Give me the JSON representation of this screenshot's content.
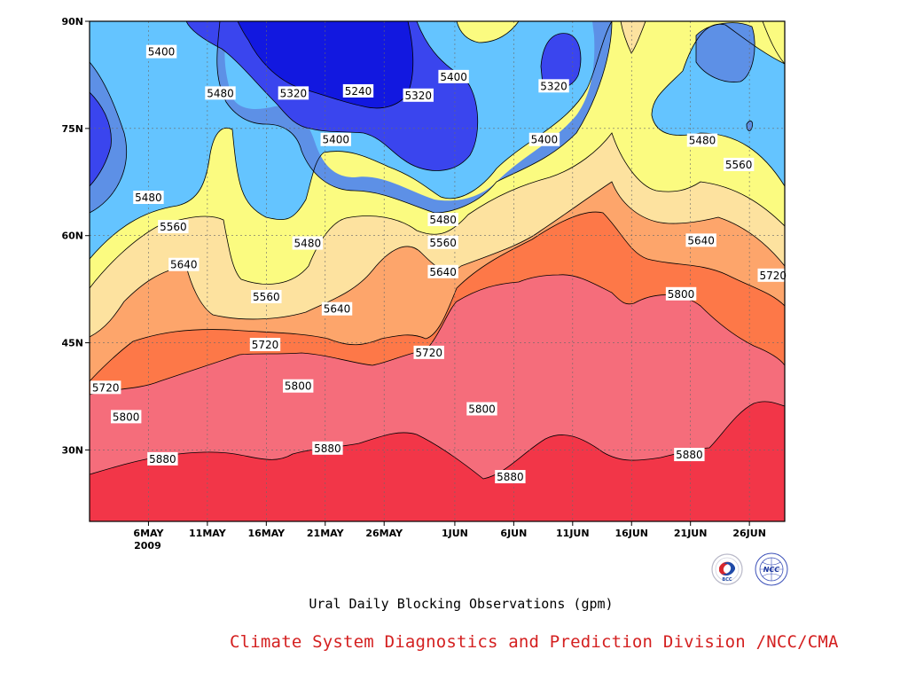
{
  "chart_data": {
    "type": "contour",
    "title": "",
    "caption": "Ural Daily Blocking Observations (gpm)",
    "credit": "Climate System Diagnostics and Prediction Division /NCC/CMA",
    "y_ticks": [
      "90N",
      "75N",
      "60N",
      "45N",
      "30N"
    ],
    "y_tick_values": [
      90,
      75,
      60,
      45,
      30
    ],
    "ylim": [
      20,
      90
    ],
    "x_ticks": [
      "6MAY",
      "11MAY",
      "16MAY",
      "21MAY",
      "26MAY",
      "1JUN",
      "6JUN",
      "11JUN",
      "16JUN",
      "21JUN",
      "26JUN"
    ],
    "x_tick_days": [
      6,
      11,
      16,
      21,
      26,
      32,
      37,
      42,
      47,
      52,
      57
    ],
    "x_year_label": "2009",
    "xlim_days": [
      1,
      60
    ],
    "x_axis_note": "days counted from 1 May 2009",
    "grid": true,
    "contour_interval": 80,
    "colors": {
      "lt5240": "#1218e0",
      "5240_5320": "#3a45ee",
      "5320_5400": "#5d90e6",
      "5400_5480": "#64c4ff",
      "5480_5560": "#fbfb80",
      "5560_5640": "#fde29f",
      "5640_5720": "#fda56b",
      "5720_5800": "#fd7848",
      "5800_5880": "#f56d7b",
      "gt5880": "#f23648"
    },
    "contour_labels": [
      {
        "text": "5400",
        "day": 7.1,
        "lat": 85.7
      },
      {
        "text": "5480",
        "day": 12.1,
        "lat": 79.9
      },
      {
        "text": "5320",
        "day": 18.3,
        "lat": 79.9
      },
      {
        "text": "5240",
        "day": 23.8,
        "lat": 80.2
      },
      {
        "text": "5320",
        "day": 28.9,
        "lat": 79.6
      },
      {
        "text": "5400",
        "day": 31.9,
        "lat": 82.2
      },
      {
        "text": "5320",
        "day": 40.4,
        "lat": 80.9
      },
      {
        "text": "5400",
        "day": 21.9,
        "lat": 73.4
      },
      {
        "text": "5400",
        "day": 39.6,
        "lat": 73.4
      },
      {
        "text": "5480",
        "day": 53.0,
        "lat": 73.3
      },
      {
        "text": "5560",
        "day": 56.1,
        "lat": 69.9
      },
      {
        "text": "5480",
        "day": 6.0,
        "lat": 65.3
      },
      {
        "text": "5560",
        "day": 8.1,
        "lat": 61.2
      },
      {
        "text": "5640",
        "day": 9.0,
        "lat": 55.9
      },
      {
        "text": "5480",
        "day": 19.5,
        "lat": 58.9
      },
      {
        "text": "5480",
        "day": 31.0,
        "lat": 62.2
      },
      {
        "text": "5560",
        "day": 31.0,
        "lat": 59.0
      },
      {
        "text": "5640",
        "day": 31.0,
        "lat": 54.9
      },
      {
        "text": "5560",
        "day": 16.0,
        "lat": 51.4
      },
      {
        "text": "5640",
        "day": 22.0,
        "lat": 49.7
      },
      {
        "text": "5640",
        "day": 52.9,
        "lat": 59.3
      },
      {
        "text": "5720",
        "day": 59.0,
        "lat": 54.4
      },
      {
        "text": "5800",
        "day": 51.2,
        "lat": 51.8
      },
      {
        "text": "5720",
        "day": 15.9,
        "lat": 44.7
      },
      {
        "text": "5720",
        "day": 29.8,
        "lat": 43.6
      },
      {
        "text": "5720",
        "day": 1.3,
        "lat": 38.7
      },
      {
        "text": "5800",
        "day": 18.7,
        "lat": 38.9
      },
      {
        "text": "5800",
        "day": 4.1,
        "lat": 34.6
      },
      {
        "text": "5800",
        "day": 34.3,
        "lat": 35.7
      },
      {
        "text": "5880",
        "day": 7.2,
        "lat": 28.7
      },
      {
        "text": "5880",
        "day": 21.2,
        "lat": 30.2
      },
      {
        "text": "5880",
        "day": 36.7,
        "lat": 26.2
      },
      {
        "text": "5880",
        "day": 51.9,
        "lat": 29.3
      }
    ]
  }
}
